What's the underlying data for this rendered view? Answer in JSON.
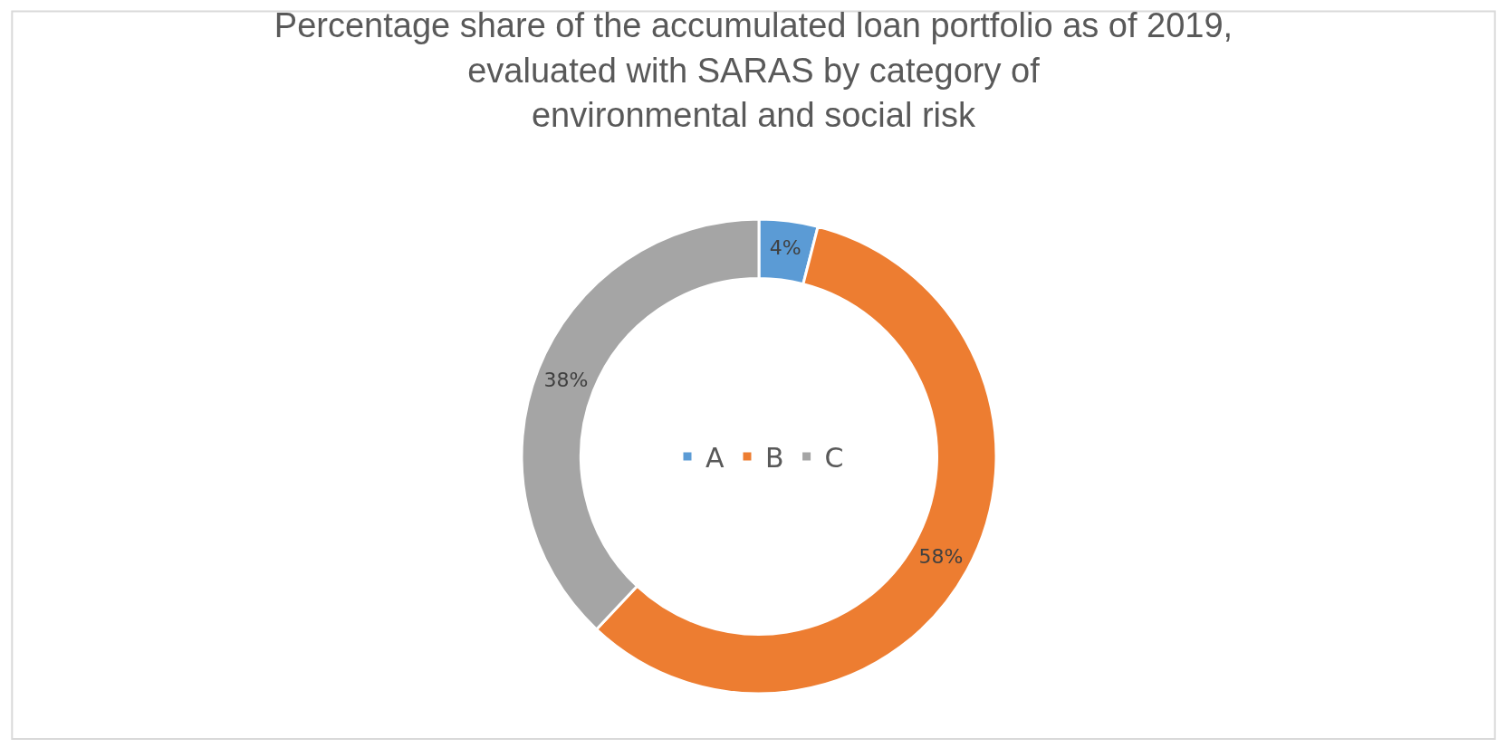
{
  "chart_data": {
    "type": "donut",
    "title": "Percentage share of the accumulated loan portfolio as of 2019,\nevaluated with SARAS by category of\nenvironmental and social risk",
    "categories": [
      "A",
      "B",
      "C"
    ],
    "values": [
      4,
      58,
      38
    ],
    "value_labels": [
      "4%",
      "58%",
      "38%"
    ],
    "colors": [
      "#5b9bd5",
      "#ed7d31",
      "#a5a5a5"
    ],
    "legend": "center"
  }
}
